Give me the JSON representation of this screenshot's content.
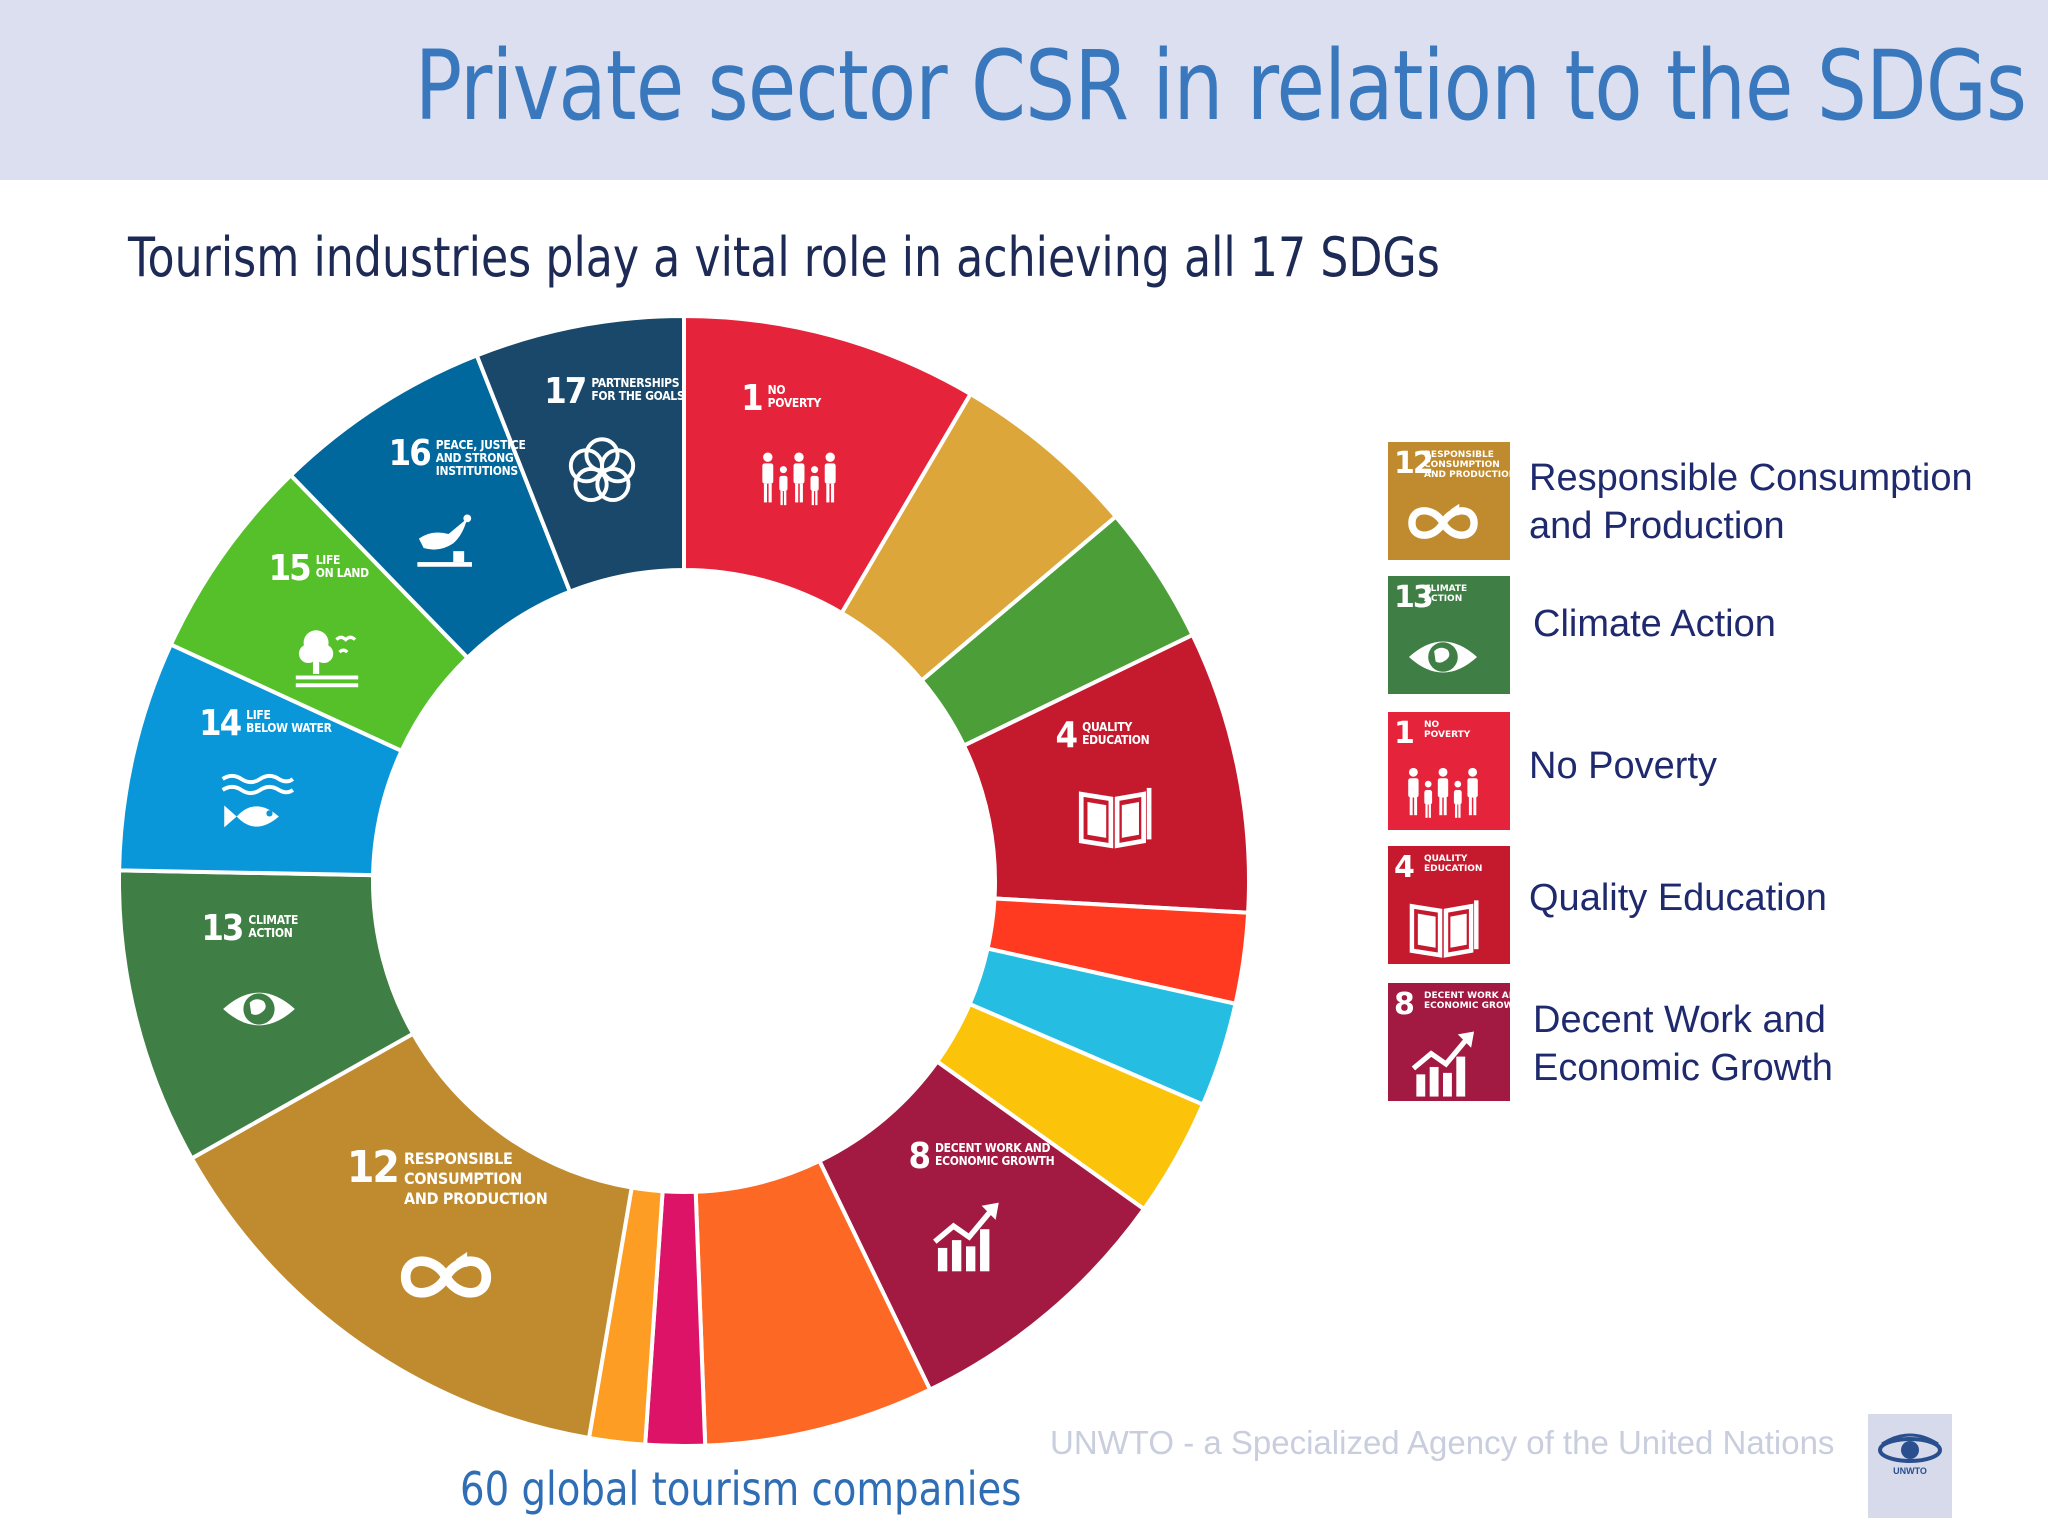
{
  "header": {
    "title": "Private sector CSR in relation to the SDGs"
  },
  "subtitle": "Tourism industries play a vital role in achieving all 17 SDGs",
  "caption": "60 global tourism companies",
  "footer": {
    "agency_text": "UNWTO - a Specialized Agency of the United Nations",
    "logo_label": "UNWTO"
  },
  "chart_data": {
    "type": "pie",
    "style": "donut",
    "unit": "share of companies (estimated %)",
    "segments": [
      {
        "goal": 1,
        "num": "1",
        "label": "NO\nPOVERTY",
        "value": 8.5,
        "color": "#e5243b",
        "icon": "family-icon"
      },
      {
        "goal": 2,
        "num": "",
        "label": "",
        "value": 5.4,
        "color": "#dda63a",
        "icon": ""
      },
      {
        "goal": 3,
        "num": "",
        "label": "",
        "value": 4.0,
        "color": "#4c9f38",
        "icon": ""
      },
      {
        "goal": 4,
        "num": "4",
        "label": "QUALITY\nEDUCATION",
        "value": 8.1,
        "color": "#c5192d",
        "icon": "book-icon"
      },
      {
        "goal": 5,
        "num": "",
        "label": "",
        "value": 2.6,
        "color": "#ff3a21",
        "icon": ""
      },
      {
        "goal": 6,
        "num": "",
        "label": "",
        "value": 3.0,
        "color": "#26bde2",
        "icon": ""
      },
      {
        "goal": 7,
        "num": "",
        "label": "",
        "value": 3.4,
        "color": "#fcc30b",
        "icon": ""
      },
      {
        "goal": 8,
        "num": "8",
        "label": "DECENT WORK AND\nECONOMIC GROWTH",
        "value": 8.0,
        "color": "#a21942",
        "icon": "growth-chart-icon"
      },
      {
        "goal": 9,
        "num": "",
        "label": "",
        "value": 6.6,
        "color": "#fd6925",
        "icon": ""
      },
      {
        "goal": 10,
        "num": "",
        "label": "",
        "value": 1.7,
        "color": "#dd1367",
        "icon": ""
      },
      {
        "goal": 11,
        "num": "",
        "label": "",
        "value": 1.6,
        "color": "#fd9d24",
        "icon": ""
      },
      {
        "goal": 12,
        "num": "12",
        "label": "RESPONSIBLE\nCONSUMPTION\nAND PRODUCTION",
        "value": 14.2,
        "color": "#bf8b2e",
        "icon": "infinity-icon"
      },
      {
        "goal": 13,
        "num": "13",
        "label": "CLIMATE\nACTION",
        "value": 8.5,
        "color": "#3f7e44",
        "icon": "eye-globe-icon"
      },
      {
        "goal": 14,
        "num": "14",
        "label": "LIFE\nBELOW WATER",
        "value": 6.6,
        "color": "#0a97d9",
        "icon": "fish-icon"
      },
      {
        "goal": 15,
        "num": "15",
        "label": "LIFE\nON LAND",
        "value": 5.9,
        "color": "#56c02b",
        "icon": "tree-icon"
      },
      {
        "goal": 16,
        "num": "16",
        "label": "PEACE, JUSTICE\nAND STRONG\nINSTITUTIONS",
        "value": 6.3,
        "color": "#00689d",
        "icon": "dove-icon"
      },
      {
        "goal": 17,
        "num": "17",
        "label": "PARTNERSHIPS\nFOR THE GOALS",
        "value": 6.0,
        "color": "#19486a",
        "icon": "rings-icon"
      }
    ],
    "legend_position": "right",
    "legend": [
      {
        "num": "12",
        "tile_text": "RESPONSIBLE\nCONSUMPTION\nAND PRODUCTION",
        "label": "Responsible Consumption\nand Production",
        "color": "#bf8b2e",
        "icon": "infinity-icon"
      },
      {
        "num": "13",
        "tile_text": "CLIMATE\nACTION",
        "label": "Climate Action",
        "color": "#3f7e44",
        "icon": "eye-globe-icon"
      },
      {
        "num": "1",
        "tile_text": "NO\nPOVERTY",
        "label": "No Poverty",
        "color": "#e5243b",
        "icon": "family-icon"
      },
      {
        "num": "4",
        "tile_text": "QUALITY\nEDUCATION",
        "label": "Quality Education",
        "color": "#c5192d",
        "icon": "book-icon"
      },
      {
        "num": "8",
        "tile_text": "DECENT WORK AND\nECONOMIC GROWTH",
        "label": "Decent Work and\nEconomic Growth",
        "color": "#a21942",
        "icon": "growth-chart-icon"
      }
    ]
  }
}
